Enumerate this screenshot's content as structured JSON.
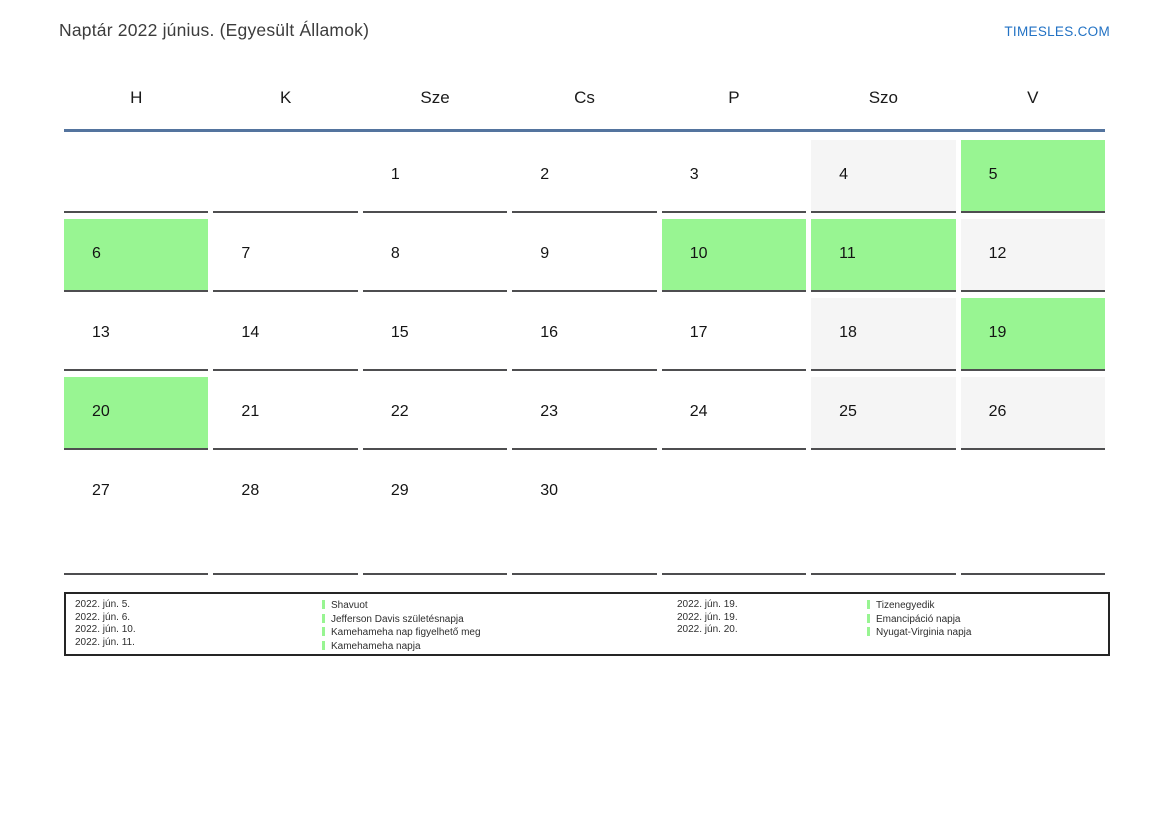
{
  "header": {
    "title": "Naptár 2022 június. (Egyesült Államok)",
    "site_link": "TIMESLES.COM"
  },
  "calendar": {
    "day_headers": [
      "H",
      "K",
      "Sze",
      "Cs",
      "P",
      "Szo",
      "V"
    ],
    "weeks": [
      [
        {
          "day": "",
          "type": "empty"
        },
        {
          "day": "",
          "type": "empty"
        },
        {
          "day": "1",
          "type": "workday"
        },
        {
          "day": "2",
          "type": "workday"
        },
        {
          "day": "3",
          "type": "workday"
        },
        {
          "day": "4",
          "type": "weekend"
        },
        {
          "day": "5",
          "type": "holiday"
        }
      ],
      [
        {
          "day": "6",
          "type": "holiday"
        },
        {
          "day": "7",
          "type": "workday"
        },
        {
          "day": "8",
          "type": "workday"
        },
        {
          "day": "9",
          "type": "workday"
        },
        {
          "day": "10",
          "type": "holiday"
        },
        {
          "day": "11",
          "type": "holiday"
        },
        {
          "day": "12",
          "type": "weekend"
        }
      ],
      [
        {
          "day": "13",
          "type": "workday"
        },
        {
          "day": "14",
          "type": "workday"
        },
        {
          "day": "15",
          "type": "workday"
        },
        {
          "day": "16",
          "type": "workday"
        },
        {
          "day": "17",
          "type": "workday"
        },
        {
          "day": "18",
          "type": "weekend"
        },
        {
          "day": "19",
          "type": "holiday"
        }
      ],
      [
        {
          "day": "20",
          "type": "holiday"
        },
        {
          "day": "21",
          "type": "workday"
        },
        {
          "day": "22",
          "type": "workday"
        },
        {
          "day": "23",
          "type": "workday"
        },
        {
          "day": "24",
          "type": "workday"
        },
        {
          "day": "25",
          "type": "weekend"
        },
        {
          "day": "26",
          "type": "weekend"
        }
      ],
      [
        {
          "day": "27",
          "type": "workday"
        },
        {
          "day": "28",
          "type": "workday"
        },
        {
          "day": "29",
          "type": "workday"
        },
        {
          "day": "30",
          "type": "workday"
        },
        {
          "day": "",
          "type": "empty"
        },
        {
          "day": "",
          "type": "empty"
        },
        {
          "day": "",
          "type": "empty"
        }
      ]
    ]
  },
  "legend": {
    "left": [
      {
        "date": "2022. jún. 5.",
        "name": "Shavuot"
      },
      {
        "date": "2022. jún. 6.",
        "name": "Jefferson Davis születésnapja"
      },
      {
        "date": "2022. jún. 10.",
        "name": "Kamehameha nap figyelhető meg"
      },
      {
        "date": "2022. jún. 11.",
        "name": "Kamehameha napja"
      }
    ],
    "right": [
      {
        "date": "2022. jún. 19.",
        "name": "Tizenegyedik"
      },
      {
        "date": "2022. jún. 19.",
        "name": "Emancipáció napja"
      },
      {
        "date": "2022. jún. 20.",
        "name": "Nyugat-Virginia napja"
      }
    ]
  },
  "colors": {
    "holiday_green": "#98f592",
    "weekend_gray": "#f5f5f5",
    "header_line_blue": "#54749e",
    "link_blue": "#2272c4"
  }
}
